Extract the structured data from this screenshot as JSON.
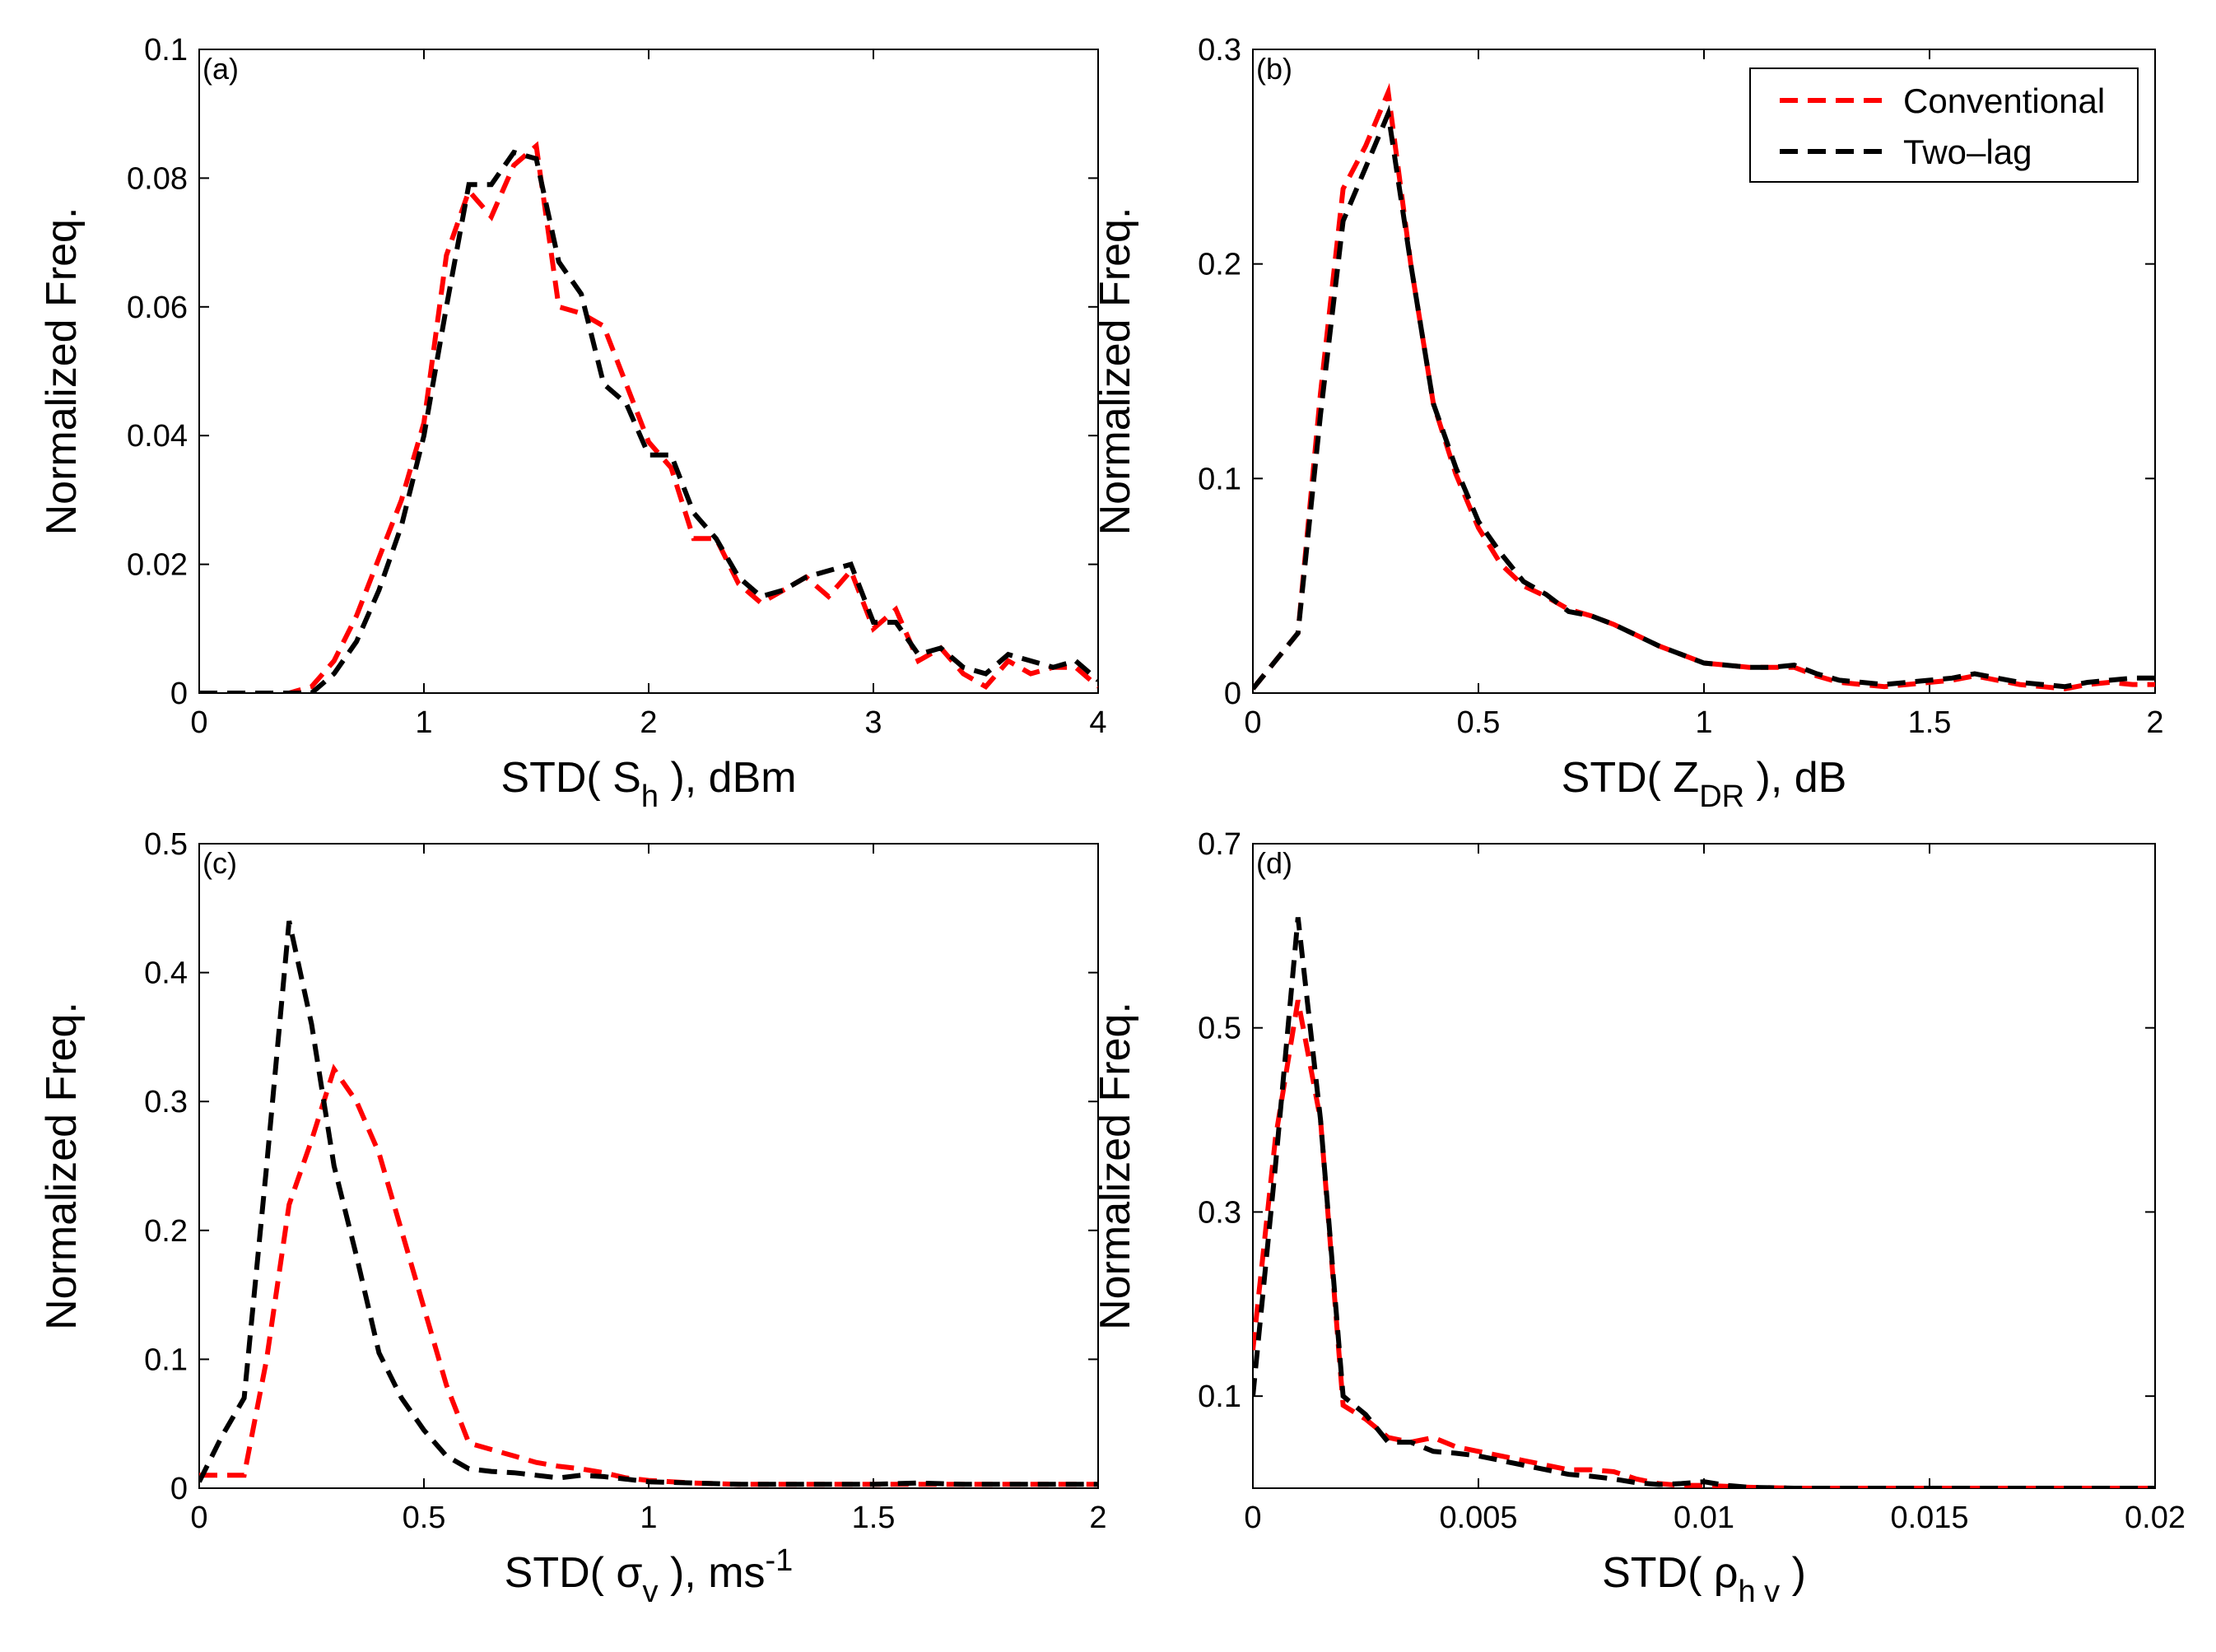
{
  "colors": {
    "conventional": "#ff0000",
    "two_lag": "#000000"
  },
  "legend": {
    "placement": "top-right of panel (b)",
    "entries": [
      "Conventional",
      "Two–lag"
    ]
  },
  "chart_data": [
    {
      "type": "line",
      "panel_label": "(a)",
      "ylabel": "Normalized Freq.",
      "xlabel": {
        "pre": "STD( S",
        "sub": "h",
        "post": " ), dBm",
        "sup": ""
      },
      "xlim": [
        0,
        4
      ],
      "ylim": [
        0,
        0.1
      ],
      "xticks": [
        0,
        1,
        2,
        3,
        4
      ],
      "xtick_labels": [
        "0",
        "1",
        "2",
        "3",
        "4"
      ],
      "yticks": [
        0,
        0.02,
        0.04,
        0.06,
        0.08,
        0.1
      ],
      "ytick_labels": [
        "0",
        "0.02",
        "0.04",
        "0.06",
        "0.08",
        "0.1"
      ],
      "x": [
        0,
        0.1,
        0.2,
        0.3,
        0.4,
        0.5,
        0.6,
        0.7,
        0.8,
        0.9,
        1.0,
        1.1,
        1.2,
        1.3,
        1.4,
        1.5,
        1.6,
        1.7,
        1.8,
        1.9,
        2.0,
        2.1,
        2.2,
        2.3,
        2.4,
        2.5,
        2.6,
        2.7,
        2.8,
        2.9,
        3.0,
        3.1,
        3.2,
        3.3,
        3.4,
        3.5,
        3.6,
        3.7,
        3.8,
        3.9,
        4.0
      ],
      "series": [
        {
          "name": "Conventional",
          "values": [
            0,
            0,
            0,
            0,
            0,
            0.001,
            0.005,
            0.012,
            0.021,
            0.03,
            0.042,
            0.068,
            0.078,
            0.074,
            0.082,
            0.085,
            0.06,
            0.059,
            0.057,
            0.048,
            0.039,
            0.035,
            0.024,
            0.024,
            0.017,
            0.014,
            0.016,
            0.018,
            0.015,
            0.019,
            0.01,
            0.013,
            0.005,
            0.007,
            0.003,
            0.001,
            0.005,
            0.003,
            0.004,
            0.004,
            0.001
          ]
        },
        {
          "name": "Two–lag",
          "values": [
            0,
            0,
            0,
            0,
            0,
            0,
            0.003,
            0.008,
            0.016,
            0.026,
            0.04,
            0.06,
            0.079,
            0.079,
            0.084,
            0.083,
            0.067,
            0.062,
            0.048,
            0.045,
            0.037,
            0.037,
            0.028,
            0.024,
            0.018,
            0.015,
            0.016,
            0.018,
            0.019,
            0.02,
            0.011,
            0.011,
            0.006,
            0.007,
            0.004,
            0.003,
            0.006,
            0.005,
            0.004,
            0.005,
            0.002
          ]
        }
      ]
    },
    {
      "type": "line",
      "panel_label": "(b)",
      "ylabel": "Normalized Freq.",
      "xlabel": {
        "pre": "STD( Z",
        "sub": "DR",
        "post": " ), dB",
        "sup": ""
      },
      "xlim": [
        0,
        2
      ],
      "ylim": [
        0,
        0.3
      ],
      "xticks": [
        0,
        0.5,
        1,
        1.5,
        2
      ],
      "xtick_labels": [
        "0",
        "0.5",
        "1",
        "1.5",
        "2"
      ],
      "yticks": [
        0,
        0.1,
        0.2,
        0.3
      ],
      "ytick_labels": [
        "0",
        "0.1",
        "0.2",
        "0.3"
      ],
      "x": [
        0,
        0.05,
        0.1,
        0.15,
        0.2,
        0.25,
        0.3,
        0.35,
        0.4,
        0.45,
        0.5,
        0.55,
        0.6,
        0.65,
        0.7,
        0.75,
        0.8,
        0.85,
        0.9,
        0.95,
        1.0,
        1.05,
        1.1,
        1.15,
        1.2,
        1.25,
        1.3,
        1.35,
        1.4,
        1.45,
        1.5,
        1.55,
        1.6,
        1.65,
        1.7,
        1.75,
        1.8,
        1.85,
        1.9,
        1.95,
        2.0
      ],
      "series": [
        {
          "name": "Conventional",
          "values": [
            0.002,
            0.015,
            0.028,
            0.14,
            0.235,
            0.255,
            0.28,
            0.2,
            0.135,
            0.102,
            0.077,
            0.06,
            0.05,
            0.045,
            0.039,
            0.036,
            0.032,
            0.027,
            0.022,
            0.018,
            0.014,
            0.013,
            0.012,
            0.012,
            0.012,
            0.008,
            0.005,
            0.004,
            0.003,
            0.004,
            0.005,
            0.006,
            0.008,
            0.006,
            0.004,
            0.003,
            0.002,
            0.004,
            0.005,
            0.004,
            0.004
          ]
        },
        {
          "name": "Two–lag",
          "values": [
            0.002,
            0.015,
            0.028,
            0.13,
            0.22,
            0.245,
            0.27,
            0.2,
            0.135,
            0.105,
            0.08,
            0.065,
            0.052,
            0.046,
            0.038,
            0.036,
            0.032,
            0.027,
            0.022,
            0.018,
            0.014,
            0.013,
            0.012,
            0.012,
            0.013,
            0.009,
            0.006,
            0.005,
            0.004,
            0.005,
            0.006,
            0.007,
            0.009,
            0.007,
            0.005,
            0.004,
            0.003,
            0.005,
            0.006,
            0.007,
            0.007
          ]
        }
      ]
    },
    {
      "type": "line",
      "panel_label": "(c)",
      "ylabel": "Normalized Freq.",
      "xlabel": {
        "pre": "STD( σ",
        "sub": "v",
        "post": " ), ms",
        "sup": "-1"
      },
      "xlim": [
        0,
        2
      ],
      "ylim": [
        0,
        0.5
      ],
      "xticks": [
        0,
        0.5,
        1,
        1.5,
        2
      ],
      "xtick_labels": [
        "0",
        "0.5",
        "1",
        "1.5",
        "2"
      ],
      "yticks": [
        0,
        0.1,
        0.2,
        0.3,
        0.4,
        0.5
      ],
      "ytick_labels": [
        "0",
        "0.1",
        "0.2",
        "0.3",
        "0.4",
        "0.5"
      ],
      "x": [
        0,
        0.05,
        0.1,
        0.15,
        0.2,
        0.25,
        0.3,
        0.35,
        0.4,
        0.45,
        0.5,
        0.55,
        0.6,
        0.65,
        0.7,
        0.75,
        0.8,
        0.85,
        0.9,
        0.95,
        1.0,
        1.1,
        1.2,
        1.3,
        1.4,
        1.5,
        1.6,
        1.7,
        1.8,
        1.9,
        2.0
      ],
      "series": [
        {
          "name": "Conventional",
          "values": [
            0.01,
            0.01,
            0.01,
            0.1,
            0.22,
            0.27,
            0.325,
            0.3,
            0.26,
            0.2,
            0.14,
            0.08,
            0.035,
            0.03,
            0.025,
            0.02,
            0.017,
            0.015,
            0.012,
            0.008,
            0.006,
            0.004,
            0.003,
            0.003,
            0.003,
            0.003,
            0.003,
            0.003,
            0.003,
            0.003,
            0.003
          ]
        },
        {
          "name": "Two–lag",
          "values": [
            0.005,
            0.04,
            0.07,
            0.25,
            0.44,
            0.36,
            0.25,
            0.18,
            0.105,
            0.07,
            0.045,
            0.025,
            0.015,
            0.013,
            0.012,
            0.01,
            0.008,
            0.01,
            0.009,
            0.007,
            0.005,
            0.004,
            0.003,
            0.003,
            0.003,
            0.003,
            0.004,
            0.003,
            0.003,
            0.003,
            0.003
          ]
        }
      ]
    },
    {
      "type": "line",
      "panel_label": "(d)",
      "ylabel": "Normalized Freq.",
      "xlabel": {
        "pre": "STD( ρ",
        "sub": "h v",
        "post": " )",
        "sup": ""
      },
      "xlim": [
        0,
        0.02
      ],
      "ylim": [
        0,
        0.7
      ],
      "xticks": [
        0,
        0.005,
        0.01,
        0.015,
        0.02
      ],
      "xtick_labels": [
        "0",
        "0.005",
        "0.01",
        "0.015",
        "0.02"
      ],
      "yticks": [
        0.1,
        0.3,
        0.5,
        0.7
      ],
      "ytick_labels": [
        "0.1",
        "0.3",
        "0.5",
        "0.7"
      ],
      "x": [
        0,
        0.0005,
        0.001,
        0.0015,
        0.002,
        0.0025,
        0.003,
        0.0035,
        0.004,
        0.0045,
        0.005,
        0.0055,
        0.006,
        0.0065,
        0.007,
        0.0075,
        0.008,
        0.0085,
        0.009,
        0.0095,
        0.01,
        0.0105,
        0.011,
        0.012,
        0.014,
        0.016,
        0.018,
        0.02
      ],
      "series": [
        {
          "name": "Conventional",
          "values": [
            0.15,
            0.38,
            0.53,
            0.4,
            0.09,
            0.075,
            0.055,
            0.05,
            0.055,
            0.045,
            0.04,
            0.035,
            0.03,
            0.025,
            0.02,
            0.02,
            0.018,
            0.01,
            0.005,
            0.003,
            0.003,
            0.002,
            0.001,
            0,
            0,
            0,
            0,
            0
          ]
        },
        {
          "name": "Two–lag",
          "values": [
            0.1,
            0.35,
            0.62,
            0.4,
            0.1,
            0.08,
            0.05,
            0.05,
            0.04,
            0.038,
            0.035,
            0.03,
            0.025,
            0.02,
            0.015,
            0.013,
            0.01,
            0.006,
            0.004,
            0.005,
            0.007,
            0.003,
            0.001,
            0,
            0,
            0,
            0,
            0
          ]
        }
      ]
    }
  ]
}
